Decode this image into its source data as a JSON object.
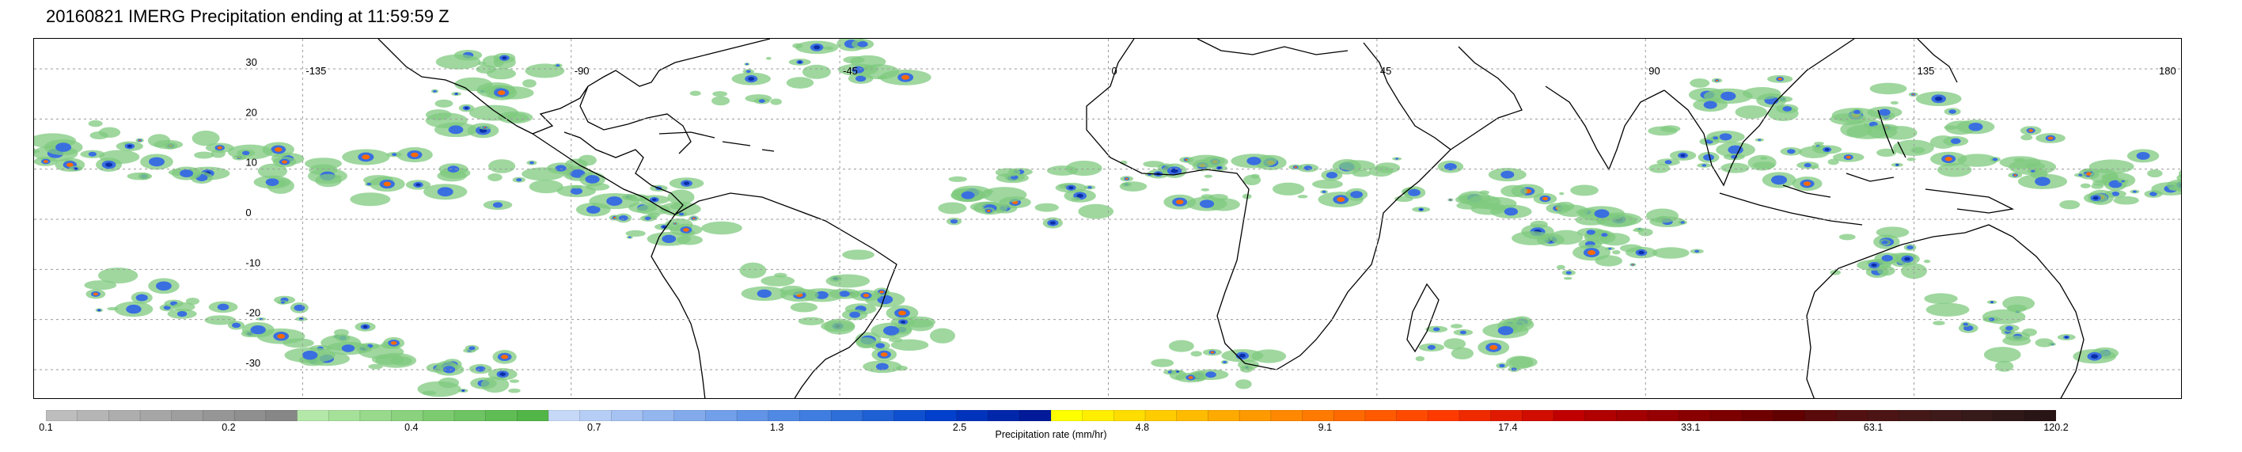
{
  "title": "20160821 IMERG Precipitation ending at 11:59:59 Z",
  "map": {
    "lon_labels": [
      "-135",
      "-90",
      "-45",
      "0",
      "45",
      "90",
      "135",
      "180"
    ],
    "lat_labels": [
      "30",
      "20",
      "10",
      "0",
      "-10",
      "-20",
      "-30"
    ],
    "extent": {
      "lon": [
        -180,
        180
      ],
      "lat": [
        -36,
        36
      ]
    },
    "gridlines": true
  },
  "colorbar": {
    "title": "Precipitation rate (mm/hr)",
    "tick_labels": [
      "0.1",
      "0.2",
      "0.4",
      "0.7",
      "1.3",
      "2.5",
      "4.8",
      "9.1",
      "17.4",
      "33.1",
      "63.1",
      "120.2"
    ],
    "colors": [
      "#bdbdbd",
      "#b5b5b5",
      "#adadad",
      "#a6a6a6",
      "#9e9e9e",
      "#969696",
      "#8f8f8f",
      "#878787",
      "#b4e8a8",
      "#a6e19a",
      "#98d98c",
      "#8ad27e",
      "#7ccb70",
      "#6ec362",
      "#60bc55",
      "#52b548",
      "#c6d8f7",
      "#b6cdf5",
      "#a5c2f2",
      "#94b6ef",
      "#83abec",
      "#729fe9",
      "#6194e6",
      "#5089e3",
      "#3f7de0",
      "#2e6ed8",
      "#1f5fd4",
      "#0e50d0",
      "#0040cc",
      "#0033bb",
      "#0026aa",
      "#001a99",
      "#ffff00",
      "#ffee00",
      "#ffdd00",
      "#ffcc00",
      "#ffbb00",
      "#ffaa00",
      "#ff9900",
      "#ff8800",
      "#ff7a00",
      "#ff6a00",
      "#ff5a00",
      "#ff4a00",
      "#ff3a00",
      "#f02a00",
      "#e01a00",
      "#d00d00",
      "#c00000",
      "#b00000",
      "#a30000",
      "#960000",
      "#890000",
      "#7c0000",
      "#6f0000",
      "#620000",
      "#5a0a0a",
      "#531010",
      "#4c1414",
      "#451818",
      "#3e1a1a",
      "#371a1a",
      "#301818",
      "#291515"
    ]
  },
  "colors": {
    "land_outline": "#000000",
    "gridline": "#9a9a9a",
    "light_rain": "#7fc97f",
    "moderate_rain": "#3a6fe0",
    "heavy_rain": "#0b2fa8",
    "intense_rain": "#ff6a00"
  }
}
